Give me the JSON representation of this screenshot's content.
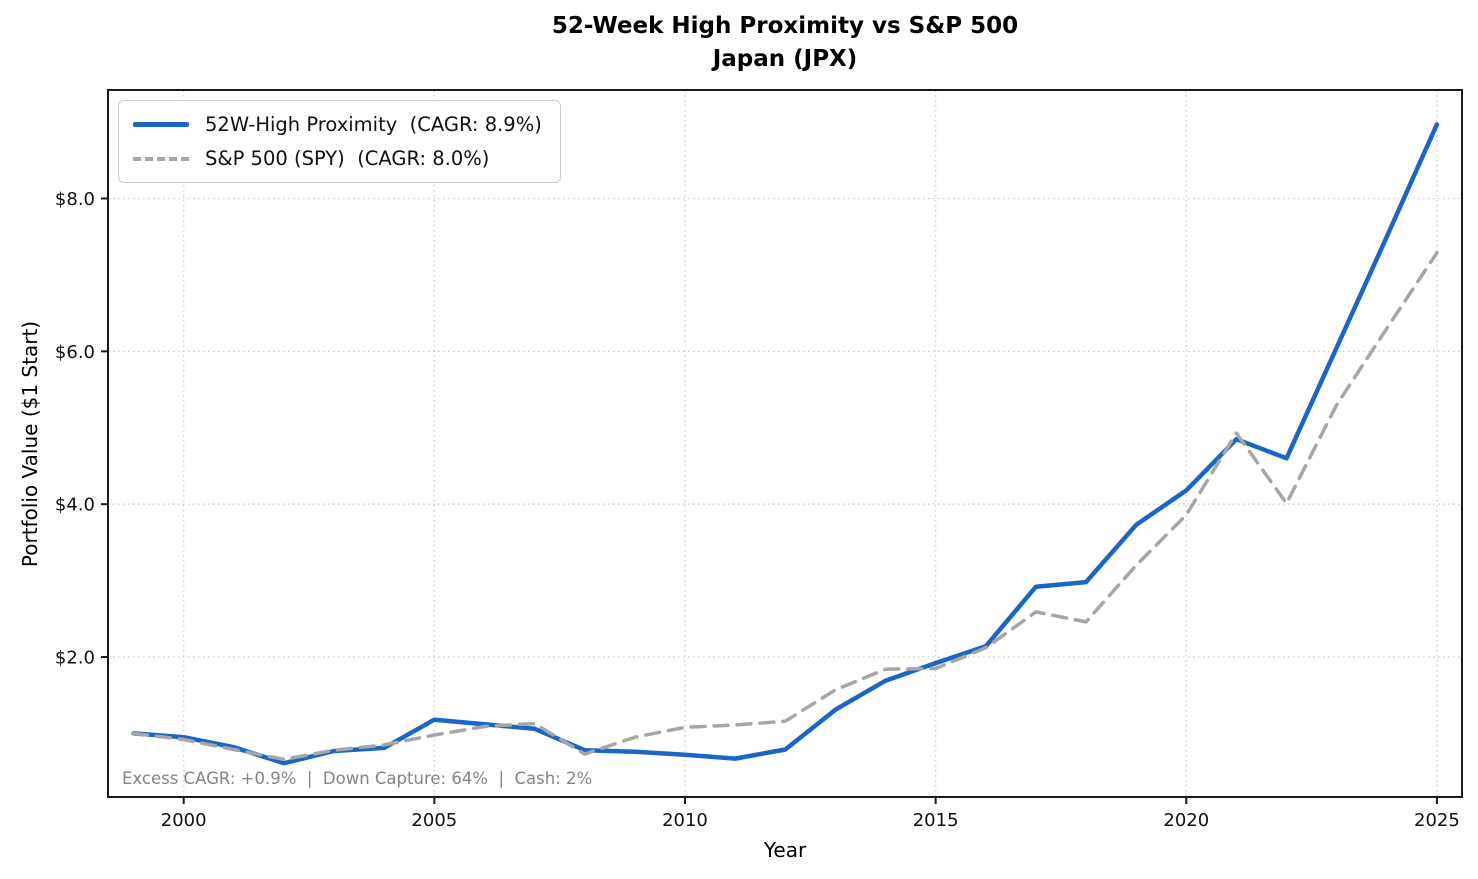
{
  "title": {
    "line1": "52-Week High Proximity vs S&P 500",
    "line2": "Japan (JPX)"
  },
  "axes": {
    "x_label": "Year",
    "y_label": "Portfolio Value ($1 Start)"
  },
  "legend": {
    "items": [
      {
        "label": "52W-High Proximity  (CAGR: 8.9%)",
        "color": "#1a66c8",
        "style": "solid"
      },
      {
        "label": "S&P 500 (SPY)  (CAGR: 8.0%)",
        "color": "#a6a6a6",
        "style": "dashed"
      }
    ]
  },
  "footnote": "Excess CAGR: +0.9%  |  Down Capture: 64%  |  Cash: 2%",
  "colors": {
    "strategy_line": "#1a66c8",
    "benchmark_line": "#a6a6a6",
    "grid": "#c9c9c9",
    "spine": "#1a1a1a",
    "tick_label": "#111111",
    "footnote_text": "#848484",
    "background": "#ffffff"
  },
  "chart_data": {
    "type": "line",
    "title": "52-Week High Proximity vs S&P 500 — Japan (JPX)",
    "xlabel": "Year",
    "ylabel": "Portfolio Value ($1 Start)",
    "grid": "dotted",
    "legend_position": "upper left",
    "x": [
      1999,
      2000,
      2001,
      2002,
      2003,
      2004,
      2005,
      2006,
      2007,
      2008,
      2009,
      2010,
      2011,
      2012,
      2013,
      2014,
      2015,
      2016,
      2017,
      2018,
      2019,
      2020,
      2021,
      2022,
      2023,
      2024,
      2025
    ],
    "series": [
      {
        "name": "52W-High Proximity (CAGR: 8.9%)",
        "color": "#1a66c8",
        "dash": null,
        "width": 4.5,
        "values": [
          1.0,
          0.95,
          0.82,
          0.61,
          0.77,
          0.81,
          1.18,
          1.12,
          1.06,
          0.78,
          0.76,
          0.72,
          0.67,
          0.79,
          1.31,
          1.69,
          1.92,
          2.14,
          2.92,
          2.98,
          3.73,
          4.18,
          4.85,
          4.6,
          6.05,
          7.5,
          8.97
        ]
      },
      {
        "name": "S&P 500 (SPY) (CAGR: 8.0%)",
        "color": "#a6a6a6",
        "dash": [
          14,
          9
        ],
        "width": 3.5,
        "values": [
          1.0,
          0.92,
          0.79,
          0.66,
          0.78,
          0.85,
          0.98,
          1.09,
          1.13,
          0.73,
          0.95,
          1.08,
          1.11,
          1.16,
          1.57,
          1.84,
          1.85,
          2.12,
          2.59,
          2.46,
          3.2,
          3.86,
          4.93,
          4.01,
          5.3,
          6.3,
          7.29
        ]
      }
    ],
    "x_ticks": [
      2000,
      2005,
      2010,
      2015,
      2020,
      2025
    ],
    "y_ticks": [
      {
        "value": 2,
        "label": "$2.0"
      },
      {
        "value": 4,
        "label": "$4.0"
      },
      {
        "value": 6,
        "label": "$6.0"
      },
      {
        "value": 8,
        "label": "$8.0"
      }
    ],
    "x_range": [
      1998.49,
      2025.5
    ],
    "y_range": [
      0.168,
      9.42
    ]
  }
}
